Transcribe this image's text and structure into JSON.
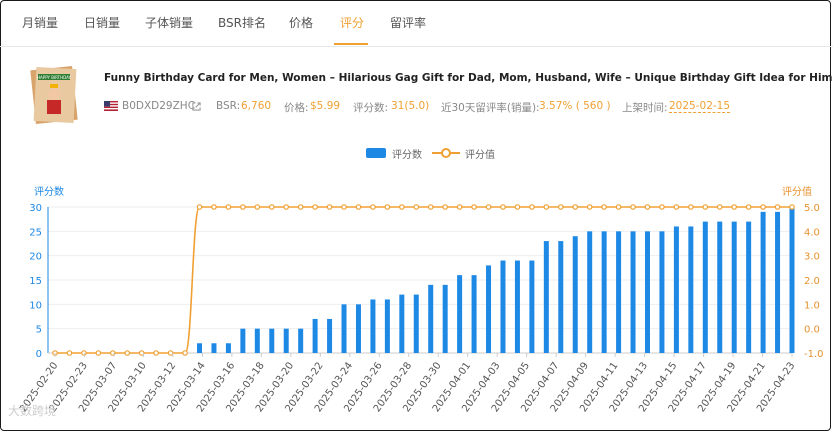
{
  "tabs": [
    {
      "label": "月销量",
      "active": false
    },
    {
      "label": "日销量",
      "active": false
    },
    {
      "label": "子体销量",
      "active": false
    },
    {
      "label": "BSR排名",
      "active": false
    },
    {
      "label": "价格",
      "active": false
    },
    {
      "label": "评分",
      "active": true
    },
    {
      "label": "留评率",
      "active": false
    }
  ],
  "product": {
    "title": "Funny Birthday Card for Men, Women – Hilarious Gag Gift for Dad, Mom, Husband, Wife – Unique Birthday Gift Idea for Him or Her",
    "asin": "B0DXD29ZHC",
    "bsr_label": "BSR:",
    "bsr_value": "6,760",
    "price_label": "价格:",
    "price_value": "$5.99",
    "rating_count_label": "评分数:",
    "rating_count_value": "31(5.0)",
    "review_rate_label": "近30天留评率(销量):",
    "review_rate_value": "3.57% ( 560 )",
    "launch_label": "上架时间:",
    "launch_value": "2025-02-15",
    "image_text": "HAPPY BIRTHDAY",
    "icons": [
      "us-flag-icon",
      "external-link-icon"
    ]
  },
  "colors": {
    "bar": "#1e88e5",
    "line": "#f0a033",
    "accent": "#f0a033",
    "axis_left": "#1e88e5",
    "axis_right": "#e8922f"
  },
  "watermark": "大数跨境",
  "chart_data": {
    "type": "bar",
    "legend_position": "top-center",
    "grid": true,
    "left_axis": {
      "title": "评分数",
      "ylim": [
        0,
        30
      ],
      "ticks": [
        0,
        5,
        10,
        15,
        20,
        25,
        30
      ]
    },
    "right_axis": {
      "title": "评分值",
      "ylim": [
        -1,
        5
      ],
      "ticks": [
        -1.0,
        0.0,
        1.0,
        2.0,
        3.0,
        4.0,
        5.0
      ]
    },
    "x_tick_labels": [
      "2025-02-20",
      "2025-02-23",
      "2025-03-07",
      "2025-03-10",
      "2025-03-12",
      "2025-03-14",
      "2025-03-16",
      "2025-03-18",
      "2025-03-20",
      "2025-03-22",
      "2025-03-24",
      "2025-03-26",
      "2025-03-28",
      "2025-03-30",
      "2025-04-01",
      "2025-04-03",
      "2025-04-05",
      "2025-04-07",
      "2025-04-09",
      "2025-04-11",
      "2025-04-13",
      "2025-04-15",
      "2025-04-17",
      "2025-04-19",
      "2025-04-21",
      "2025-04-23"
    ],
    "series": [
      {
        "name": "评分数",
        "type": "bar",
        "axis": "left",
        "values": [
          0,
          0,
          0,
          0,
          0,
          0,
          0,
          0,
          0,
          0,
          2,
          2,
          2,
          5,
          5,
          5,
          5,
          5,
          7,
          7,
          10,
          10,
          11,
          11,
          12,
          12,
          14,
          14,
          16,
          16,
          18,
          19,
          19,
          19,
          23,
          23,
          24,
          25,
          25,
          25,
          25,
          25,
          25,
          26,
          26,
          27,
          27,
          27,
          27,
          29,
          29,
          30
        ]
      },
      {
        "name": "评分值",
        "type": "line",
        "axis": "right",
        "values": [
          -1,
          -1,
          -1,
          -1,
          -1,
          -1,
          -1,
          -1,
          -1,
          -1,
          5,
          5,
          5,
          5,
          5,
          5,
          5,
          5,
          5,
          5,
          5,
          5,
          5,
          5,
          5,
          5,
          5,
          5,
          5,
          5,
          5,
          5,
          5,
          5,
          5,
          5,
          5,
          5,
          5,
          5,
          5,
          5,
          5,
          5,
          5,
          5,
          5,
          5,
          5,
          5,
          5,
          5
        ]
      }
    ]
  }
}
